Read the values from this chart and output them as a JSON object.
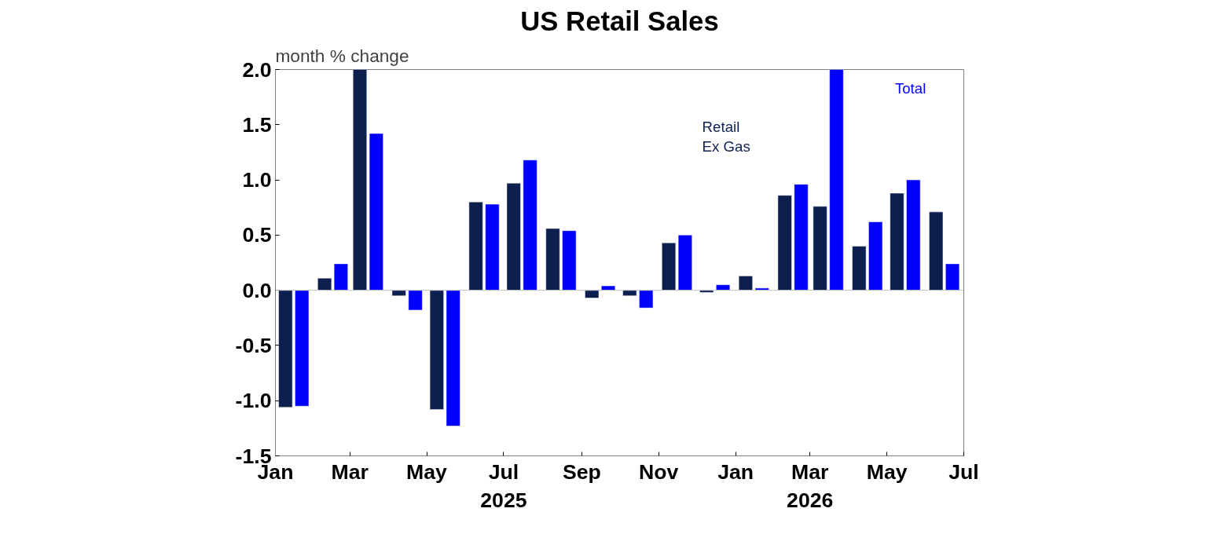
{
  "chart_data": {
    "type": "bar",
    "title": "US Retail Sales",
    "ylabel": "month % change",
    "series": [
      {
        "name": "Retail Ex Gas",
        "color": "#0c1f4f",
        "x": [
          "2025-01-09",
          "2025-02-09",
          "2025-03-09",
          "2025-04-09",
          "2025-05-09",
          "2025-06-09",
          "2025-07-09",
          "2025-08-09",
          "2025-09-09",
          "2025-10-09",
          "2025-11-09",
          "2025-12-09",
          "2026-01-09",
          "2026-02-09",
          "2026-03-09",
          "2026-04-09",
          "2026-05-09",
          "2026-06-09"
        ],
        "values": [
          -1.06,
          0.11,
          2.0,
          -0.05,
          -1.08,
          0.8,
          0.97,
          0.56,
          -0.07,
          -0.05,
          0.43,
          -0.02,
          0.13,
          0.86,
          0.76,
          0.4,
          0.88,
          0.71
        ]
      },
      {
        "name": "Total",
        "color": "#0000ff",
        "x": [
          "2025-01-22",
          "2025-02-22",
          "2025-03-22",
          "2025-04-22",
          "2025-05-22",
          "2025-06-22",
          "2025-07-22",
          "2025-08-22",
          "2025-09-22",
          "2025-10-22",
          "2025-11-22",
          "2025-12-22",
          "2026-01-22",
          "2026-02-22",
          "2026-03-22",
          "2026-04-22",
          "2026-05-22",
          "2026-06-22"
        ],
        "values": [
          -1.05,
          0.24,
          1.42,
          -0.18,
          -1.23,
          0.78,
          1.18,
          0.54,
          0.04,
          -0.16,
          0.5,
          0.05,
          0.02,
          0.96,
          2.0,
          0.62,
          1.0,
          0.24
        ]
      }
    ],
    "xlim": [
      "2025-01",
      "2026-07"
    ],
    "xticks": [
      {
        "value": "2025-01",
        "label": "Jan"
      },
      {
        "value": "2025-03",
        "label": "Mar"
      },
      {
        "value": "2025-05",
        "label": "May"
      },
      {
        "value": "2025-07",
        "label": "Jul\n2025"
      },
      {
        "value": "2025-09",
        "label": "Sep"
      },
      {
        "value": "2025-11",
        "label": "Nov"
      },
      {
        "value": "2026-01",
        "label": "Jan"
      },
      {
        "value": "2026-03",
        "label": "Mar\n2026"
      },
      {
        "value": "2026-05",
        "label": "May"
      },
      {
        "value": "2026-07",
        "label": "Jul"
      }
    ],
    "ylim": [
      -1.5,
      2.0
    ],
    "yticks": [
      {
        "value": -1.5,
        "label": "-1.5"
      },
      {
        "value": -1.0,
        "label": "-1.0"
      },
      {
        "value": -0.5,
        "label": "-0.5"
      },
      {
        "value": 0,
        "label": "0.0"
      },
      {
        "value": 0.5,
        "label": "0.5"
      },
      {
        "value": 1.0,
        "label": "1.0"
      },
      {
        "value": 1.5,
        "label": "1.5"
      },
      {
        "value": 2.0,
        "label": "2.0"
      }
    ],
    "ref_lines": [
      {
        "axis": "y",
        "value": 0,
        "color": "#c0c0c0"
      }
    ],
    "grid": false
  }
}
